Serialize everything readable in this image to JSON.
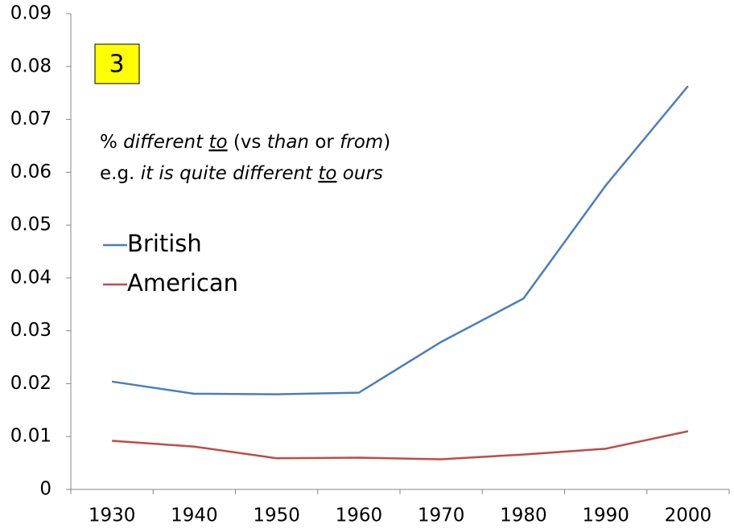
{
  "chart_data": {
    "type": "line",
    "badge": "3",
    "annotation": [
      [
        "% ",
        "different ",
        "to",
        " (vs ",
        "than",
        " or ",
        "from",
        ")"
      ],
      [
        "e.g. ",
        "it is quite different ",
        "to",
        " ours"
      ]
    ],
    "categories": [
      "1930",
      "1940",
      "1950",
      "1960",
      "1970",
      "1980",
      "1990",
      "2000"
    ],
    "series": [
      {
        "name": "British",
        "color": "#4a7ebb",
        "values": [
          0.0204,
          0.0181,
          0.018,
          0.0183,
          0.0279,
          0.0361,
          0.0575,
          0.0763
        ]
      },
      {
        "name": "American",
        "color": "#be4b48",
        "values": [
          0.0092,
          0.0081,
          0.0059,
          0.006,
          0.0057,
          0.0066,
          0.0077,
          0.011
        ]
      }
    ],
    "ylim": [
      0,
      0.09
    ],
    "yticks": [
      0,
      0.01,
      0.02,
      0.03,
      0.04,
      0.05,
      0.06,
      0.07,
      0.08,
      0.09
    ],
    "legend": "left"
  }
}
